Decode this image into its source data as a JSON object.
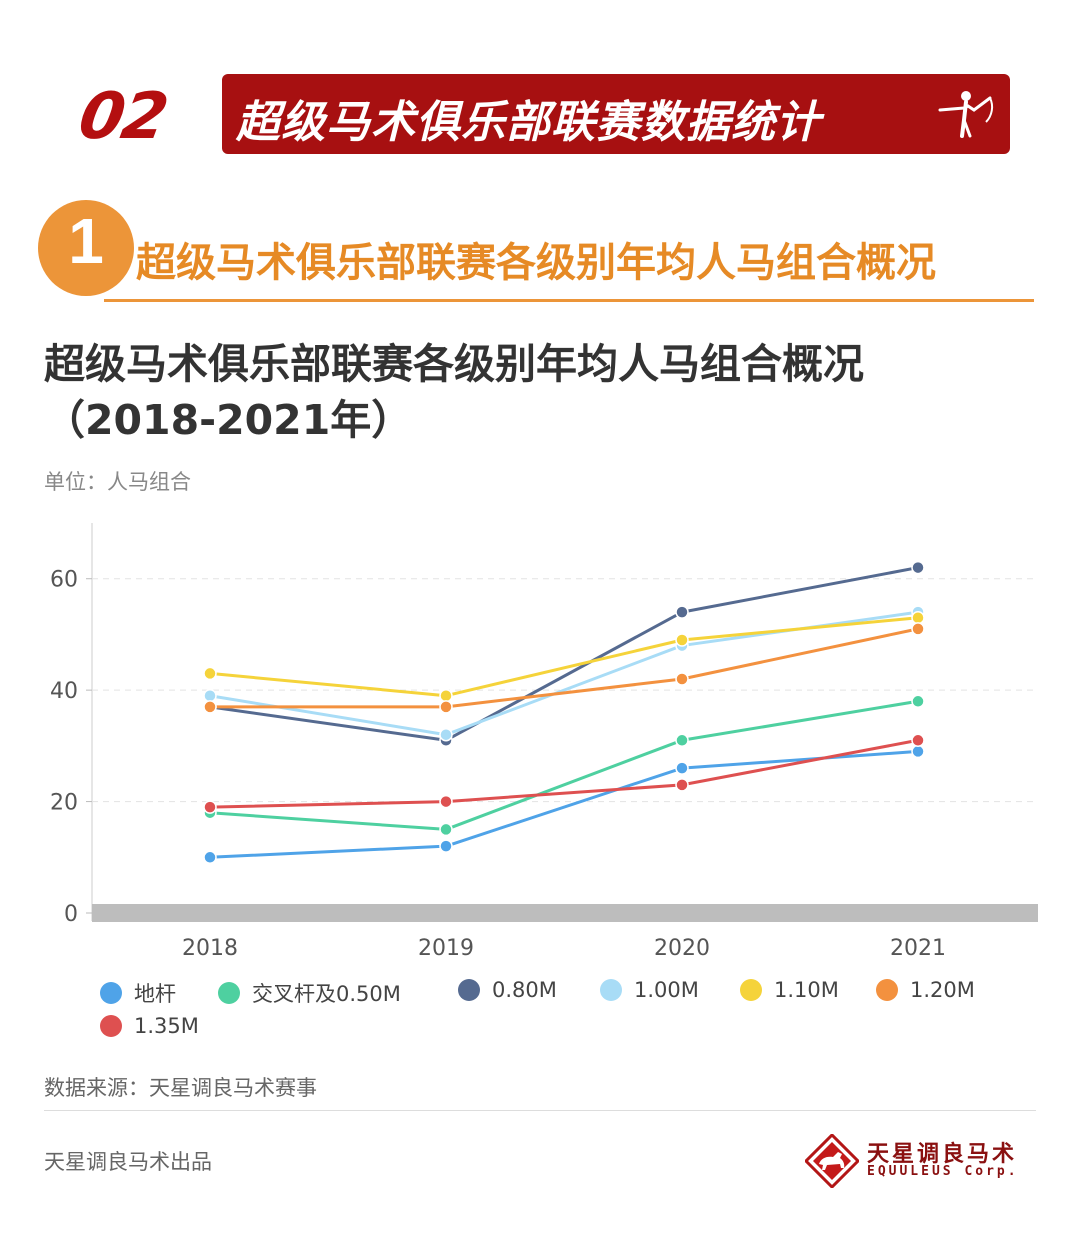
{
  "header": {
    "number": "02",
    "title": "超级马术俱乐部联赛数据统计"
  },
  "section": {
    "number": "1",
    "title": "超级马术俱乐部联赛各级别年均人马组合概况"
  },
  "chart_data": {
    "type": "line",
    "title": "超级马术俱乐部联赛各级别年均人马组合概况",
    "subtitle": "（2018-2021年）",
    "unit_label": "单位：人马组合",
    "x": [
      "2018",
      "2019",
      "2020",
      "2021"
    ],
    "ylim": [
      0,
      70
    ],
    "yticks": [
      0,
      20,
      40,
      60
    ],
    "grid": true,
    "legend_position": "bottom",
    "series": [
      {
        "name": "地杆",
        "color": "#4fa3e8",
        "values": [
          10,
          12,
          26,
          29
        ]
      },
      {
        "name": "交叉杆及0.50M",
        "color": "#4ed0a0",
        "values": [
          18,
          15,
          31,
          38
        ]
      },
      {
        "name": "0.80M",
        "color": "#556a90",
        "values": [
          37,
          31,
          54,
          62
        ]
      },
      {
        "name": "1.00M",
        "color": "#a8dcf6",
        "values": [
          39,
          32,
          48,
          54
        ]
      },
      {
        "name": "1.10M",
        "color": "#f5d33a",
        "values": [
          43,
          39,
          49,
          53
        ]
      },
      {
        "name": "1.20M",
        "color": "#f3913f",
        "values": [
          37,
          37,
          42,
          51
        ]
      },
      {
        "name": "1.35M",
        "color": "#de5050",
        "values": [
          19,
          20,
          23,
          31
        ]
      }
    ]
  },
  "footer": {
    "source": "数据来源：天星调良马术赛事",
    "producer": "天星调良马术出品",
    "brand_cn": "天星调良马术",
    "brand_en": "EQUULEUS Corp."
  }
}
